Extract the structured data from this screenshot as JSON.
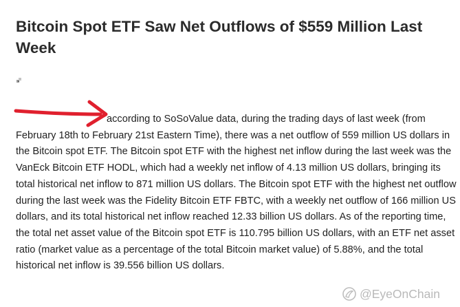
{
  "article": {
    "title": "Bitcoin Spot ETF Saw Net Outflows of $559 Million Last Week",
    "body": "according to SoSoValue data, during the trading days of last week (from February 18th to February 21st Eastern Time), there was a net outflow of 559 million US dollars in the Bitcoin spot ETF. The Bitcoin spot ETF with the highest net inflow during the last week was the VanEck Bitcoin ETF HODL, which had a weekly net inflow of 4.13 million US dollars, bringing its total historical net inflow to 871 million US dollars. The Bitcoin spot ETF with the highest net outflow during the last week was the Fidelity Bitcoin ETF FBTC, with a weekly net outflow of 166 million US dollars, and its total historical net inflow reached 12.33 billion US dollars. As of the reporting time, the total net asset value of the Bitcoin spot ETF is 110.795 billion US dollars, with an ETF net asset ratio (market value as a percentage of the total Bitcoin market value) of 5.88%, and the total historical net inflow is 39.556 billion US dollars."
  },
  "annotation": {
    "icon": "red-arrow-icon",
    "color": "#e0202e"
  },
  "image_placeholder": {
    "icon": "broken-image-icon"
  },
  "watermark": {
    "icon": "platform-logo-icon",
    "handle": "@EyeOnChain"
  }
}
